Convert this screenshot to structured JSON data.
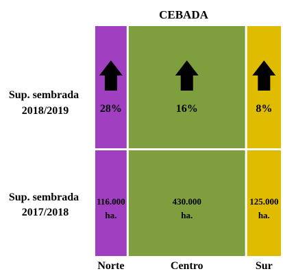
{
  "chart_data": {
    "type": "mekko",
    "title": "CEBADA",
    "regions": [
      "Norte",
      "Centro",
      "Sur"
    ],
    "row_labels": {
      "campaign_2018_2019": [
        "Sup. sembrada",
        "2018/2019"
      ],
      "campaign_2017_2018": [
        "Sup. sembrada",
        "2017/2018"
      ]
    },
    "sown_area_2017_2018": {
      "values": [
        116000,
        430000,
        125000
      ],
      "labels": [
        [
          "116.000",
          "ha."
        ],
        [
          "430.000",
          "ha."
        ],
        [
          "125.000",
          "ha."
        ]
      ]
    },
    "change_2018_2019": {
      "values_pct": [
        28,
        16,
        8
      ],
      "labels": [
        "28%",
        "16%",
        "8%"
      ],
      "direction": "up"
    },
    "colors": {
      "Norte": "#a040c0",
      "Centro": "#7f9f3f",
      "Sur": "#e0bc00",
      "arrow": "#000000"
    }
  }
}
